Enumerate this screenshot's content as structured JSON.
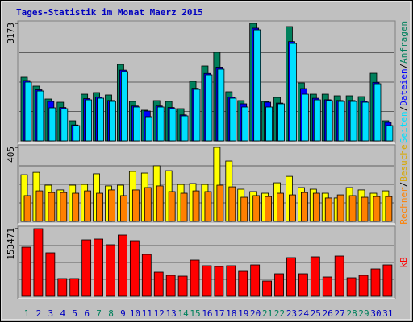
{
  "chart_data": [
    {
      "type": "bar",
      "title": "Tages-Statistik im Monat Maerz 2015",
      "title_color": "#0000c0",
      "legend_separator": "/",
      "series": [
        {
          "name": "Anfragen",
          "color": "#00805c",
          "values": [
            1717,
            1478,
            1130,
            1043,
            543,
            1260,
            1304,
            1239,
            2064,
            1065,
            826,
            1087,
            1065,
            869,
            1608,
            2021,
            2390,
            1326,
            1087,
            3173,
            1065,
            1173,
            3086,
            1565,
            1260,
            1260,
            1217,
            1217,
            1195,
            1825,
            543
          ]
        },
        {
          "name": "Dateien",
          "color": "#0000ff",
          "values": [
            1630,
            1380,
            1065,
            900,
            430,
            1140,
            1180,
            1090,
            1910,
            940,
            804,
            940,
            900,
            700,
            1420,
            1820,
            1990,
            1180,
            1000,
            3043,
            1043,
            1020,
            2680,
            1412,
            1150,
            1110,
            1090,
            1090,
            1070,
            1580,
            500
          ]
        },
        {
          "name": "Seiten",
          "color": "#00e0ff",
          "values": [
            1586,
            1347,
            891,
            869,
            413,
            1108,
            1152,
            1065,
            1869,
            913,
            652,
            913,
            869,
            674,
            1391,
            1782,
            1934,
            1152,
            913,
            2999,
            913,
            1000,
            2629,
            1260,
            1108,
            1087,
            1065,
            1065,
            1043,
            1543,
            413
          ]
        }
      ],
      "ylim": [
        0,
        3173
      ],
      "yticks": [
        3173
      ]
    },
    {
      "type": "bar",
      "legend_separator": "/",
      "series": [
        {
          "name": "Besuche",
          "color": "#ffff00",
          "label_color": "#d8a800",
          "values": [
            255,
            268,
            198,
            172,
            198,
            202,
            260,
            194,
            198,
            273,
            264,
            304,
            277,
            202,
            207,
            202,
            405,
            330,
            176,
            163,
            154,
            211,
            246,
            185,
            176,
            154,
            128,
            185,
            172,
            154,
            167
          ]
        },
        {
          "name": "Rechner",
          "color": "#ff8000",
          "values": [
            141,
            167,
            158,
            158,
            154,
            167,
            154,
            172,
            141,
            172,
            185,
            194,
            163,
            154,
            167,
            163,
            198,
            189,
            132,
            141,
            136,
            154,
            145,
            158,
            154,
            128,
            145,
            141,
            132,
            136,
            136
          ]
        }
      ],
      "ylim": [
        0,
        405
      ],
      "yticks": [
        405
      ]
    },
    {
      "type": "bar",
      "series": [
        {
          "name": "kB",
          "color": "#ff0000",
          "values": [
            111447,
            153471,
            98658,
            40194,
            40194,
            127890,
            129717,
            116928,
            138852,
            126063,
            95004,
            54810,
            47502,
            45675,
            82215,
            69426,
            67599,
            69426,
            56637,
            71253,
            34713,
            51156,
            87696,
            51156,
            89523,
            43848,
            91350,
            42021,
            47502,
            62118,
            71253
          ]
        }
      ],
      "ylim": [
        0,
        153471
      ],
      "yticks": [
        153471
      ],
      "categories": [
        "1",
        "2",
        "3",
        "4",
        "5",
        "6",
        "7",
        "8",
        "9",
        "10",
        "11",
        "12",
        "13",
        "14",
        "15",
        "16",
        "17",
        "18",
        "19",
        "20",
        "21",
        "22",
        "23",
        "24",
        "25",
        "26",
        "27",
        "28",
        "29",
        "30",
        "31"
      ],
      "category_colors": [
        "#00805c",
        "#0000c0",
        "#0000c0",
        "#0000c0",
        "#0000c0",
        "#0000c0",
        "#00805c",
        "#00805c",
        "#0000c0",
        "#0000c0",
        "#0000c0",
        "#0000c0",
        "#0000c0",
        "#00805c",
        "#00805c",
        "#0000c0",
        "#0000c0",
        "#0000c0",
        "#0000c0",
        "#0000c0",
        "#00805c",
        "#00805c",
        "#0000c0",
        "#0000c0",
        "#0000c0",
        "#0000c0",
        "#0000c0",
        "#00805c",
        "#00805c",
        "#0000c0",
        "#0000c0"
      ]
    }
  ]
}
